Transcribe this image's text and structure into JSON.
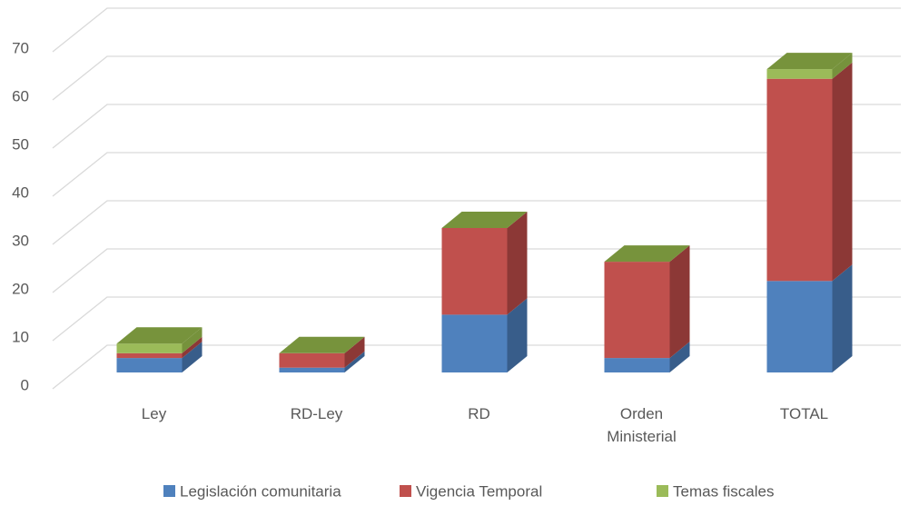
{
  "chart_data": {
    "type": "bar3d_stacked",
    "categories": [
      "Ley",
      "RD-Ley",
      "RD",
      "Orden Ministerial",
      "TOTAL"
    ],
    "series": [
      {
        "name": "Legislación comunitaria",
        "color": "#4f81bd",
        "values": [
          3,
          1,
          12,
          3,
          19
        ]
      },
      {
        "name": "Vigencia Temporal",
        "color": "#c0504d",
        "values": [
          1,
          3,
          18,
          20,
          42
        ]
      },
      {
        "name": "Temas fiscales",
        "color": "#9bbb59",
        "values": [
          2,
          0,
          0,
          0,
          2
        ]
      }
    ],
    "ylim": [
      0,
      70
    ],
    "yticks": [
      0,
      10,
      20,
      30,
      40,
      50,
      60,
      70
    ],
    "grid": true,
    "legend": "bottom"
  }
}
